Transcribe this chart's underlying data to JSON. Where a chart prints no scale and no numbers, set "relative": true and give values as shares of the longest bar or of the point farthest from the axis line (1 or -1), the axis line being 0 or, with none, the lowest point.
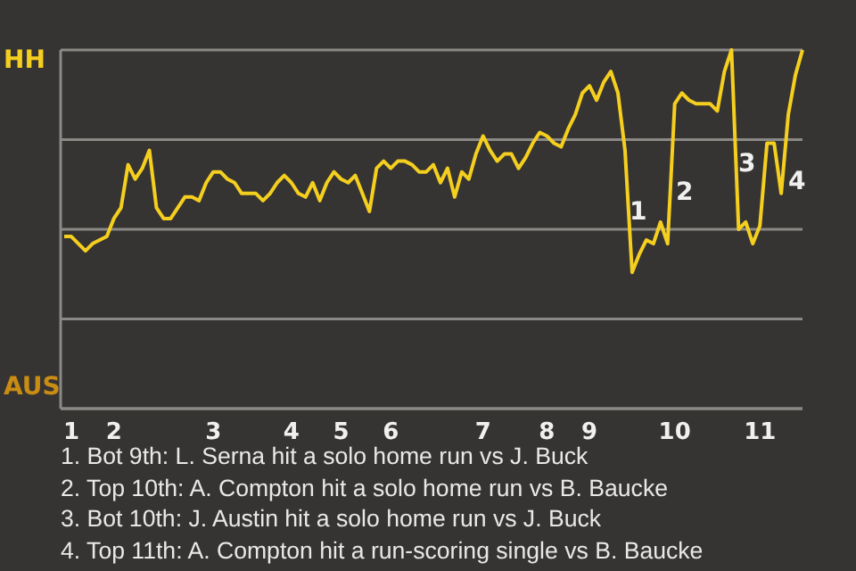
{
  "chart_data": {
    "type": "line",
    "relative": true,
    "categories": [
      null,
      "1",
      null,
      null,
      null,
      null,
      null,
      "2",
      null,
      null,
      null,
      null,
      null,
      null,
      null,
      null,
      null,
      null,
      null,
      null,
      null,
      "3",
      null,
      null,
      null,
      null,
      null,
      null,
      null,
      null,
      null,
      null,
      "4",
      null,
      null,
      null,
      null,
      null,
      null,
      "5",
      null,
      null,
      null,
      null,
      null,
      null,
      "6",
      null,
      null,
      null,
      null,
      null,
      null,
      null,
      null,
      null,
      null,
      null,
      null,
      "7",
      null,
      null,
      null,
      null,
      null,
      null,
      null,
      null,
      "8",
      null,
      null,
      null,
      null,
      null,
      "9",
      null,
      null,
      null,
      null,
      null,
      null,
      null,
      null,
      null,
      null,
      null,
      "10",
      null,
      null,
      null,
      null,
      null,
      null,
      null,
      null,
      null,
      null,
      null,
      "11",
      null,
      null,
      null,
      null,
      null,
      null
    ],
    "series": [
      {
        "color": "#f5cf1f",
        "values": [
          0.48,
          0.48,
          0.46,
          0.44,
          0.46,
          0.47,
          0.48,
          0.53,
          0.56,
          0.68,
          0.64,
          0.67,
          0.72,
          0.56,
          0.53,
          0.53,
          0.56,
          0.59,
          0.59,
          0.58,
          0.63,
          0.66,
          0.66,
          0.64,
          0.63,
          0.6,
          0.6,
          0.6,
          0.58,
          0.6,
          0.63,
          0.65,
          0.63,
          0.6,
          0.59,
          0.63,
          0.58,
          0.63,
          0.66,
          0.64,
          0.63,
          0.65,
          0.6,
          0.55,
          0.67,
          0.69,
          0.67,
          0.69,
          0.69,
          0.68,
          0.66,
          0.66,
          0.68,
          0.63,
          0.67,
          0.59,
          0.66,
          0.64,
          0.71,
          0.76,
          0.72,
          0.69,
          0.71,
          0.71,
          0.67,
          0.7,
          0.74,
          0.77,
          0.76,
          0.74,
          0.73,
          0.78,
          0.82,
          0.88,
          0.9,
          0.86,
          0.91,
          0.94,
          0.88,
          0.72,
          0.38,
          0.43,
          0.47,
          0.46,
          0.52,
          0.46,
          0.85,
          0.88,
          0.86,
          0.85,
          0.85,
          0.85,
          0.83,
          0.94,
          1,
          0.5,
          0.52,
          0.46,
          0.51,
          0.74,
          0.74,
          0.6,
          0.82,
          0.93,
          1
        ]
      }
    ],
    "grid": "y",
    "annotations": [
      "HH",
      "AUS",
      "1",
      "2",
      "3",
      "4",
      "1. Bot 9th: L. Serna hit a solo home run vs J. Buck",
      "2. Top 10th: A. Compton hit a solo home run vs B. Baucke",
      "3. Bot 10th: J. Austin hit a solo home run vs J. Buck",
      "4. Top 11th: A. Compton hit a run-scoring single vs B. Baucke"
    ]
  }
}
